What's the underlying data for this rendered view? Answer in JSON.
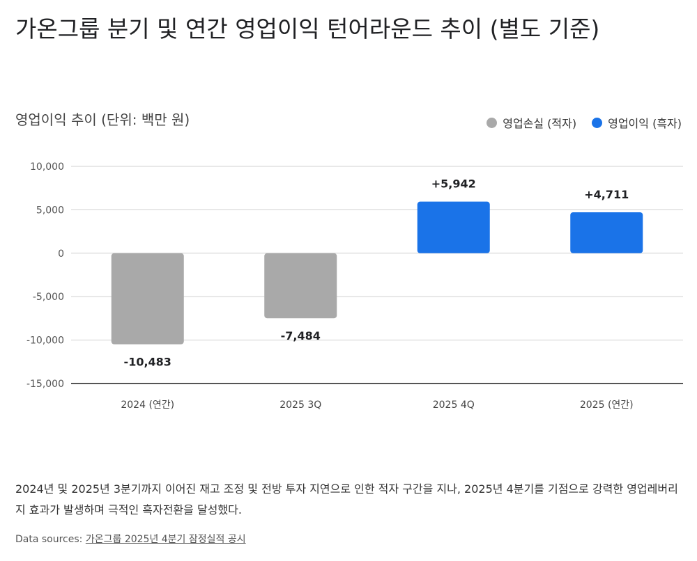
{
  "title": "가온그룹 분기 및 연간 영업이익 턴어라운드 추이 (별도 기준)",
  "subtitle": "영업이익 추이 (단위: 백만 원)",
  "legend": [
    {
      "label": "영업손실 (적자)",
      "color": "#a9a9a9"
    },
    {
      "label": "영업이익 (흑자)",
      "color": "#1a73e8"
    }
  ],
  "description": "2024년 및 2025년 3분기까지 이어진 재고 조정 및 전방 투자 지연으로 인한 적자 구간을 지나, 2025년 4분기를 기점으로 강력한 영업레버리지 효과가 발생하며 극적인 흑자전환을 달성했다.",
  "source": {
    "prefix": "Data sources: ",
    "link_text": "가온그룹 2025년 4분기 잠정실적 공시"
  },
  "chart_data": {
    "type": "bar",
    "title": "가온그룹 분기 및 연간 영업이익 턴어라운드 추이 (별도 기준)",
    "subtitle": "영업이익 추이 (단위: 백만 원)",
    "categories": [
      "2024 (연간)",
      "2025 3Q",
      "2025 4Q",
      "2025 (연간)"
    ],
    "values": [
      -10483,
      -7484,
      5942,
      4711
    ],
    "data_labels": [
      "-10,483",
      "-7,484",
      "+5,942",
      "+4,711"
    ],
    "colors": [
      "#a9a9a9",
      "#a9a9a9",
      "#1a73e8",
      "#1a73e8"
    ],
    "ylim": [
      -15000,
      10000
    ],
    "yticks": [
      10000,
      5000,
      0,
      -5000,
      -10000,
      -15000
    ],
    "ytick_labels": [
      "10,000",
      "5,000",
      "0",
      "-5,000",
      "-10,000",
      "-15,000"
    ],
    "grid": true,
    "legend_position": "top-right"
  }
}
